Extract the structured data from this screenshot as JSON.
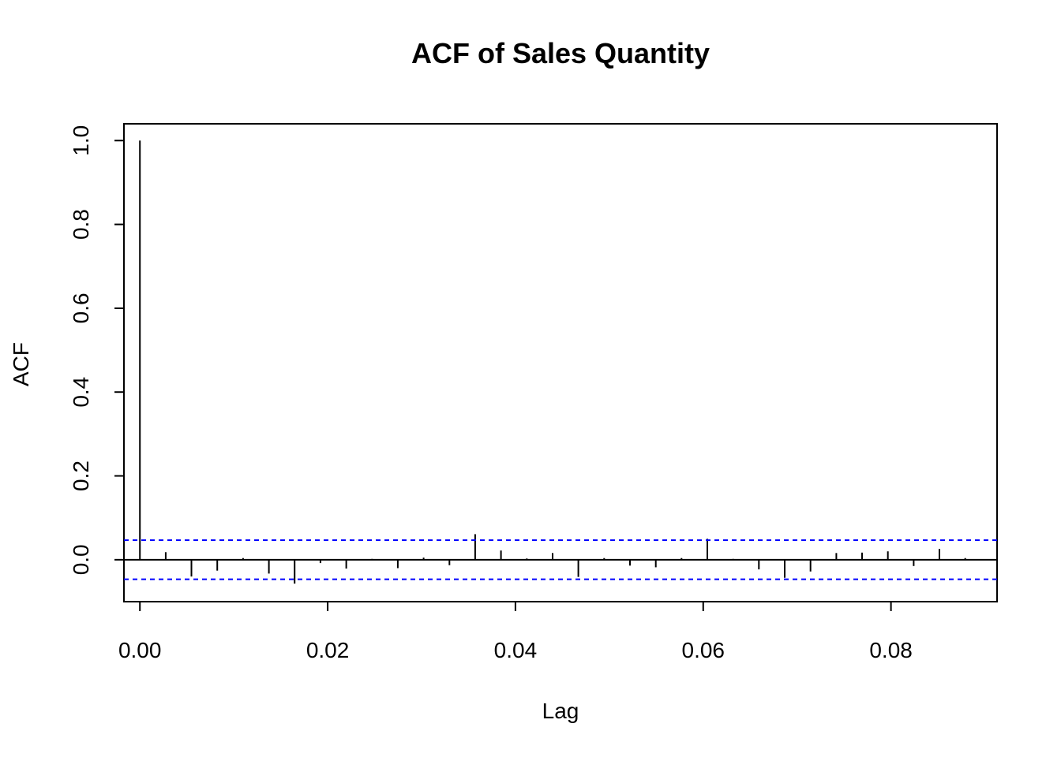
{
  "chart_data": {
    "type": "bar",
    "title": "ACF of Sales Quantity",
    "xlabel": "Lag",
    "ylabel": "ACF",
    "xlim": [
      -0.0017,
      0.0913
    ],
    "ylim": [
      -0.1,
      1.04
    ],
    "x_ticks": [
      "0.00",
      "0.02",
      "0.04",
      "0.06",
      "0.08"
    ],
    "x_tick_values": [
      0,
      0.02,
      0.04,
      0.06,
      0.08
    ],
    "y_ticks": [
      "0.0",
      "0.2",
      "0.4",
      "0.6",
      "0.8",
      "1.0"
    ],
    "y_tick_values": [
      0,
      0.2,
      0.4,
      0.6,
      0.8,
      1.0
    ],
    "grid": false,
    "lag_step": 0.002747,
    "lags": [
      0,
      0.00275,
      0.00549,
      0.00824,
      0.01099,
      0.01374,
      0.01648,
      0.01923,
      0.02198,
      0.02473,
      0.02747,
      0.03022,
      0.03297,
      0.03571,
      0.03846,
      0.04121,
      0.04396,
      0.0467,
      0.04945,
      0.0522,
      0.05495,
      0.05769,
      0.06044,
      0.06319,
      0.06593,
      0.06868,
      0.07143,
      0.07418,
      0.07692,
      0.07967,
      0.08242,
      0.08516,
      0.08791
    ],
    "values": [
      1.0,
      0.018,
      -0.04,
      -0.026,
      0.004,
      -0.033,
      -0.057,
      -0.008,
      -0.021,
      0.002,
      -0.02,
      0.005,
      -0.013,
      0.061,
      0.022,
      0.003,
      0.016,
      -0.041,
      0.004,
      -0.014,
      -0.018,
      0.004,
      0.05,
      0.002,
      -0.023,
      -0.043,
      -0.028,
      0.016,
      0.017,
      0.02,
      -0.015,
      0.026,
      0.004
    ],
    "confidence_bound": 0.0467,
    "colors": {
      "bars": "#000000",
      "confidence": "#0000ff"
    }
  }
}
